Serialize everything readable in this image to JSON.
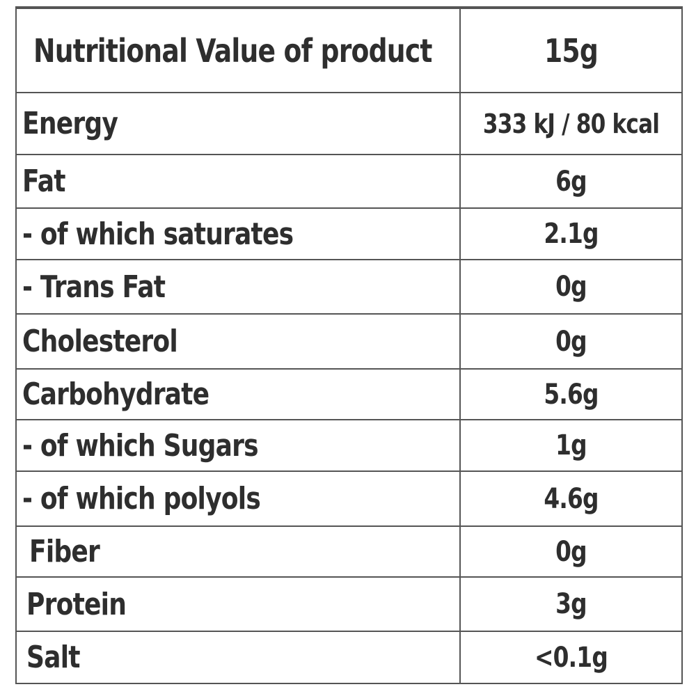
{
  "table": {
    "header": {
      "label": "Nutritional Value of product",
      "value": "15g"
    },
    "rows": [
      {
        "label": "Energy",
        "value": "333 kJ / 80 kcal"
      },
      {
        "label": "Fat",
        "value": "6g"
      },
      {
        "label": "- of which saturates",
        "value": "2.1g"
      },
      {
        "label": "- Trans Fat",
        "value": "0g"
      },
      {
        "label": "Cholesterol",
        "value": "0g"
      },
      {
        "label": "Carbohydrate",
        "value": "5.6g"
      },
      {
        "label": "- of which Sugars",
        "value": "1g"
      },
      {
        "label": "- of which polyols",
        "value": "4.6g"
      },
      {
        "label": "Fiber",
        "value": "0g"
      },
      {
        "label": "Protein",
        "value": "3g"
      },
      {
        "label": "Salt",
        "value": "<0.1g"
      }
    ]
  }
}
